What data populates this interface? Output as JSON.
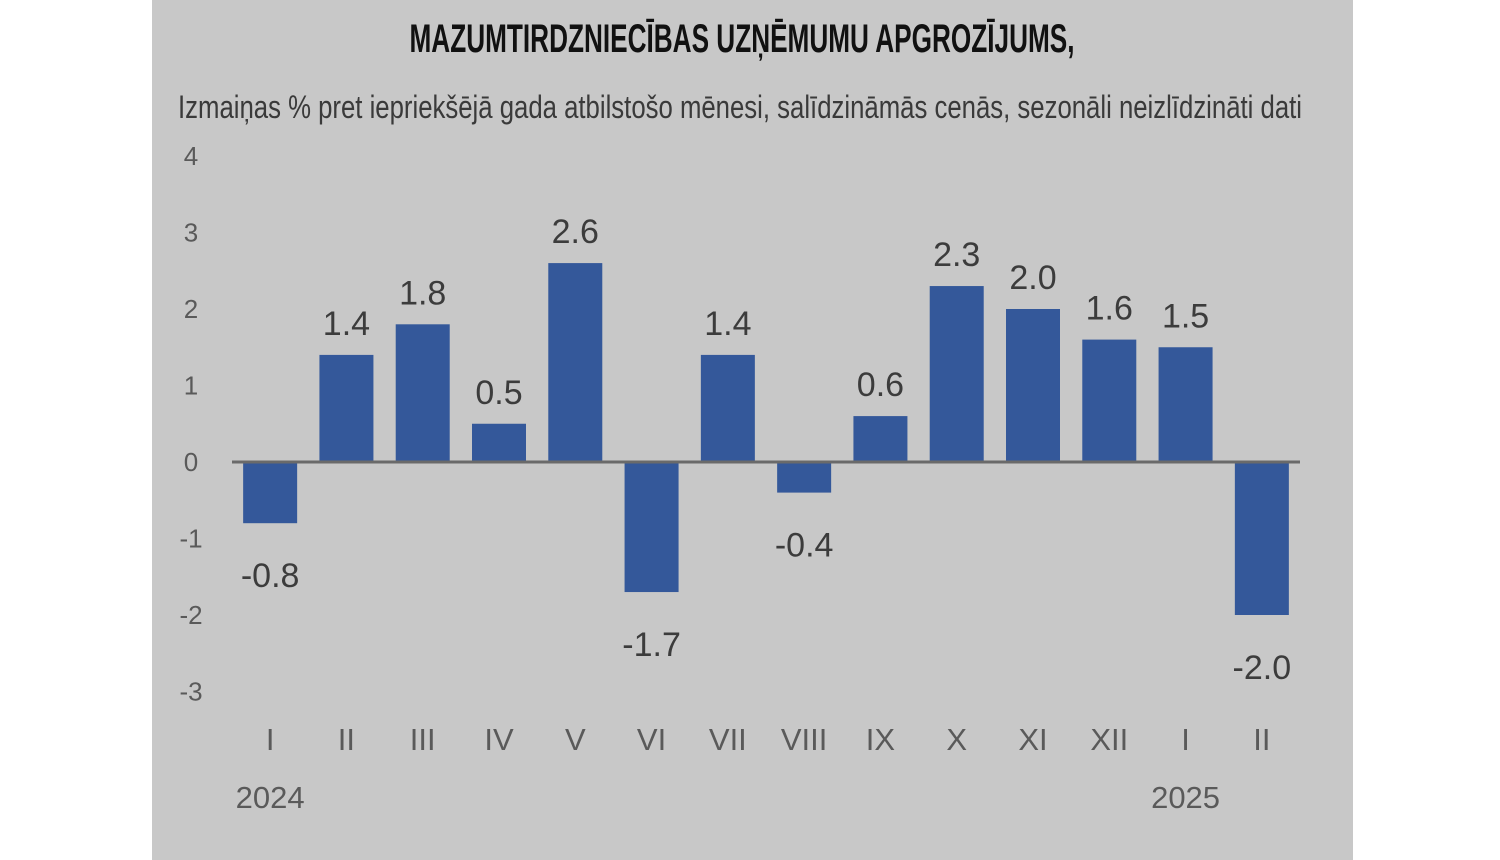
{
  "chart_data": {
    "type": "bar",
    "title": "MAZUMTIRDZNIECĪBAS UZŅĒMUMU APGROZĪJUMS,",
    "subtitle": "Izmaiņas % pret iepriekšējā gada atbilstošo mēnesi, salīdzināmās cenās, sezonāli neizlīdzināti dati",
    "categories": [
      "I",
      "II",
      "III",
      "IV",
      "V",
      "VI",
      "VII",
      "VIII",
      "IX",
      "X",
      "XI",
      "XII",
      "I",
      "II"
    ],
    "values": [
      -0.8,
      1.4,
      1.8,
      0.5,
      2.6,
      -1.7,
      1.4,
      -0.4,
      0.6,
      2.3,
      2.0,
      1.6,
      1.5,
      -2.0
    ],
    "value_labels": [
      "-0.8",
      "1.4",
      "1.8",
      "0.5",
      "2.6",
      "-1.7",
      "1.4",
      "-0.4",
      "0.6",
      "2.3",
      "2.0",
      "1.6",
      "1.5",
      "-2.0"
    ],
    "yticks": [
      4,
      3,
      2,
      1,
      0,
      -1,
      -2,
      -3
    ],
    "ylim": [
      -3,
      4
    ],
    "year_labels": [
      {
        "label": "2024",
        "category_index": 0
      },
      {
        "label": "2025",
        "category_index": 12
      }
    ],
    "bar_color": "#34589a",
    "axis_color": "#6a6a6a",
    "grid": false,
    "legend": "none"
  }
}
